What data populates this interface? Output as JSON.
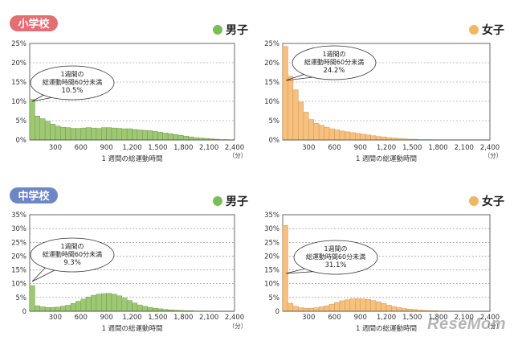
{
  "sections": [
    {
      "label": "小学校",
      "color": "#e26f73"
    },
    {
      "label": "中学校",
      "color": "#6d87c6"
    }
  ],
  "legend": {
    "boys": "男子",
    "girls": "女子"
  },
  "colors": {
    "boys": "#9ec874",
    "boys_stroke": "#6f9c44",
    "girls": "#f6c07e",
    "girls_stroke": "#d8954a",
    "boys_dot": "#7bbd5a",
    "girls_dot": "#f2b663"
  },
  "watermark": "ReseMom",
  "chart_data": [
    {
      "type": "bar",
      "section": "小学校",
      "legend": "男子",
      "xlabel": "1 週間の総運動時間",
      "x_unit": "（分）",
      "x_ticks": [
        "300",
        "600",
        "900",
        "1,200",
        "1,500",
        "1,800",
        "2,100",
        "2,400"
      ],
      "y_ticks": [
        "0%",
        "5%",
        "10%",
        "15%",
        "20%",
        "25%"
      ],
      "ylim": [
        0,
        25
      ],
      "xlim": [
        0,
        2400
      ],
      "bin_width": 60,
      "callout": {
        "lines": [
          "1週間の",
          "総運動時間60分未満"
        ],
        "value": "10.5%"
      },
      "values": [
        10.5,
        6.2,
        5.5,
        4.8,
        4.1,
        3.6,
        3.3,
        3.2,
        3.0,
        3.0,
        3.1,
        3.2,
        3.1,
        3.0,
        3.2,
        3.2,
        3.1,
        3.0,
        2.9,
        2.9,
        2.7,
        2.6,
        2.5,
        2.4,
        2.2,
        2.0,
        1.8,
        1.6,
        1.4,
        1.2,
        1.0,
        0.8,
        0.6,
        0.5,
        0.4,
        0.3,
        0.2,
        0.1,
        0.1,
        0.0
      ]
    },
    {
      "type": "bar",
      "section": "小学校",
      "legend": "女子",
      "xlabel": "1 週間の総運動時間",
      "x_unit": "（分）",
      "x_ticks": [
        "300",
        "600",
        "900",
        "1,200",
        "1,500",
        "1,800",
        "2,100",
        "2,400"
      ],
      "y_ticks": [
        "0%",
        "5%",
        "10%",
        "15%",
        "20%",
        "25%"
      ],
      "ylim": [
        0,
        25
      ],
      "xlim": [
        0,
        2400
      ],
      "bin_width": 60,
      "callout": {
        "lines": [
          "1週間の",
          "総運動時間60分未満"
        ],
        "value": "24.2%"
      },
      "values": [
        24.2,
        16.5,
        13.0,
        9.8,
        7.2,
        5.3,
        4.3,
        3.8,
        3.3,
        2.9,
        2.6,
        2.3,
        2.1,
        1.9,
        1.7,
        1.5,
        1.3,
        1.1,
        0.9,
        0.8,
        0.6,
        0.5,
        0.4,
        0.3,
        0.2,
        0.2,
        0.1,
        0.1,
        0.1,
        0.0,
        0.0,
        0.0,
        0.0,
        0.0,
        0.0,
        0.0,
        0.0,
        0.0,
        0.0,
        0.0
      ]
    },
    {
      "type": "bar",
      "section": "中学校",
      "legend": "男子",
      "xlabel": "1 週間の総運動時間",
      "x_unit": "（分）",
      "x_ticks": [
        "300",
        "600",
        "900",
        "1,200",
        "1,500",
        "1,800",
        "2,100",
        "2,400"
      ],
      "y_ticks": [
        "0",
        "5%",
        "10%",
        "15%",
        "20%",
        "25%",
        "30%",
        "35%"
      ],
      "ylim": [
        0,
        35
      ],
      "xlim": [
        0,
        2400
      ],
      "bin_width": 60,
      "callout": {
        "lines": [
          "1週間の",
          "総運動時間60分未満"
        ],
        "value": "9.3%"
      },
      "values": [
        9.3,
        2.0,
        1.6,
        1.4,
        1.4,
        1.5,
        1.8,
        2.2,
        2.8,
        3.6,
        4.4,
        5.2,
        5.8,
        6.2,
        6.4,
        6.5,
        6.2,
        5.6,
        4.8,
        3.9,
        3.0,
        2.3,
        1.8,
        1.4,
        1.1,
        0.9,
        0.7,
        0.5,
        0.4,
        0.3,
        0.2,
        0.2,
        0.1,
        0.1,
        0.1,
        0.0,
        0.0,
        0.0,
        0.0,
        0.0
      ]
    },
    {
      "type": "bar",
      "section": "中学校",
      "legend": "女子",
      "xlabel": "1 週間の総運動時間",
      "x_unit": "（分）",
      "x_ticks": [
        "300",
        "600",
        "900",
        "1,200",
        "1,500",
        "1,800",
        "2,100",
        "2,400"
      ],
      "y_ticks": [
        "0",
        "5%",
        "10%",
        "15%",
        "20%",
        "25%",
        "30%",
        "35%"
      ],
      "ylim": [
        0,
        35
      ],
      "xlim": [
        0,
        2400
      ],
      "bin_width": 60,
      "callout": {
        "lines": [
          "1週間の",
          "総運動時間60分未満"
        ],
        "value": "31.1%"
      },
      "values": [
        31.1,
        2.9,
        1.8,
        1.3,
        1.1,
        1.1,
        1.3,
        1.6,
        2.0,
        2.6,
        3.2,
        3.8,
        4.2,
        4.5,
        4.6,
        4.5,
        4.3,
        3.9,
        3.4,
        2.8,
        2.2,
        1.7,
        1.3,
        1.0,
        0.8,
        0.6,
        0.4,
        0.3,
        0.2,
        0.2,
        0.1,
        0.1,
        0.0,
        0.0,
        0.0,
        0.0,
        0.0,
        0.0,
        0.0,
        0.0
      ]
    }
  ]
}
